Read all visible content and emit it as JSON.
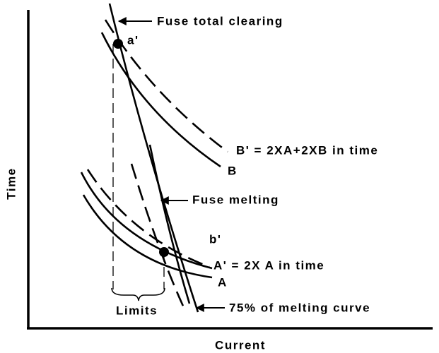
{
  "labels": {
    "fuse_total_clearing": "Fuse total clearing",
    "a_prime": "a'",
    "b_prime_eq": "B' = 2XA+2XB in time",
    "b": "B",
    "fuse_melting": "Fuse melting",
    "b_prime": "b'",
    "a_prime_eq": "A' = 2X A in time",
    "a": "A",
    "melting_75": "75% of melting curve",
    "limits": "Limits",
    "y_axis": "Time",
    "x_axis": "Current"
  }
}
